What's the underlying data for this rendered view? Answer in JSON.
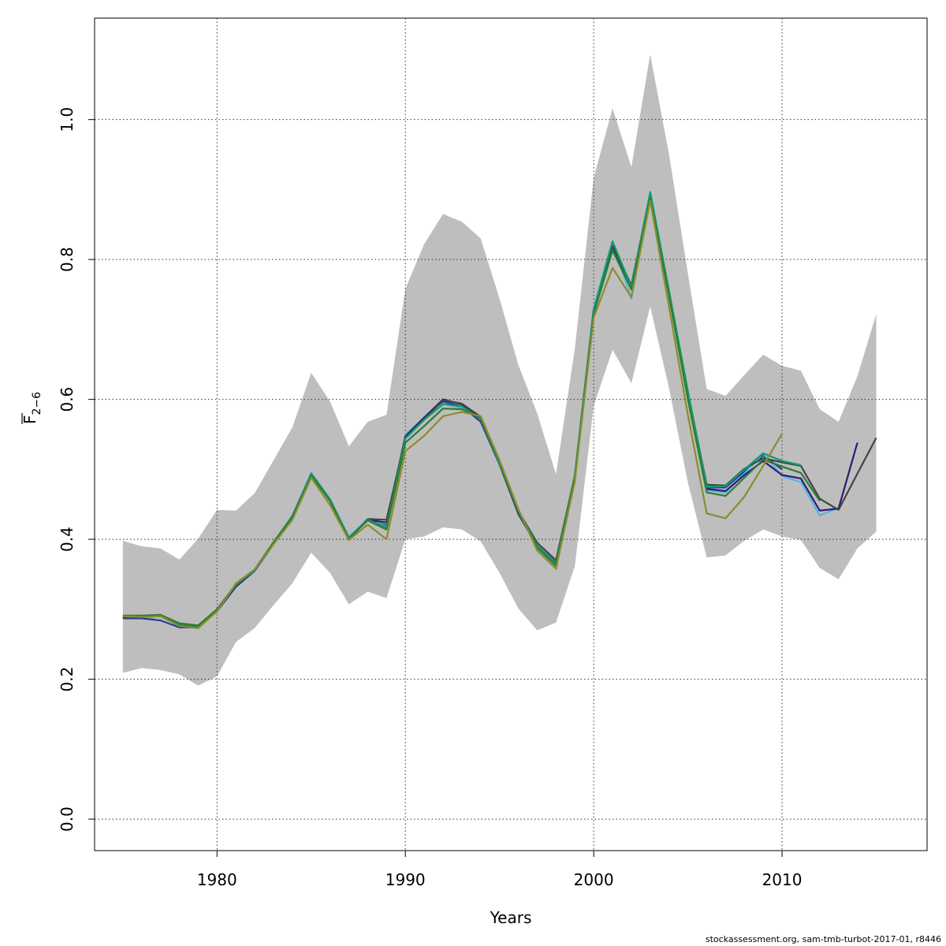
{
  "chart_data": {
    "type": "line",
    "xlabel": "Years",
    "ylabel_main": "F",
    "ylabel_sub": "2−6",
    "xlim": [
      1973.5,
      2017.7
    ],
    "ylim": [
      -0.045,
      1.145
    ],
    "x_ticks": [
      1980,
      1990,
      2000,
      2010
    ],
    "x_tick_labels": [
      "1980",
      "1990",
      "2000",
      "2010"
    ],
    "y_ticks": [
      0.0,
      0.2,
      0.4,
      0.6,
      0.8,
      1.0
    ],
    "y_tick_labels": [
      "0.0",
      "0.2",
      "0.4",
      "0.6",
      "0.8",
      "1.0"
    ],
    "grid": true,
    "band": {
      "color": "#bebebe",
      "x": [
        1975,
        1976,
        1977,
        1978,
        1979,
        1980,
        1981,
        1982,
        1983,
        1984,
        1985,
        1986,
        1987,
        1988,
        1989,
        1990,
        1991,
        1992,
        1993,
        1994,
        1995,
        1996,
        1997,
        1998,
        1999,
        2000,
        2001,
        2002,
        2003,
        2004,
        2005,
        2006,
        2007,
        2008,
        2009,
        2010,
        2011,
        2012,
        2013,
        2014,
        2015
      ],
      "upper": [
        0.398,
        0.39,
        0.387,
        0.371,
        0.401,
        0.442,
        0.441,
        0.466,
        0.513,
        0.56,
        0.638,
        0.597,
        0.533,
        0.568,
        0.578,
        0.758,
        0.822,
        0.865,
        0.854,
        0.83,
        0.744,
        0.649,
        0.58,
        0.493,
        0.673,
        0.917,
        1.016,
        0.932,
        1.093,
        0.95,
        0.78,
        0.615,
        0.605,
        0.635,
        0.664,
        0.648,
        0.641,
        0.586,
        0.568,
        0.633,
        0.722
      ],
      "lower": [
        0.209,
        0.216,
        0.213,
        0.207,
        0.191,
        0.204,
        0.253,
        0.273,
        0.306,
        0.337,
        0.381,
        0.352,
        0.307,
        0.325,
        0.316,
        0.4,
        0.404,
        0.417,
        0.414,
        0.397,
        0.352,
        0.301,
        0.27,
        0.281,
        0.362,
        0.591,
        0.671,
        0.623,
        0.733,
        0.616,
        0.481,
        0.374,
        0.377,
        0.398,
        0.414,
        0.404,
        0.399,
        0.359,
        0.343,
        0.387,
        0.411
      ]
    },
    "series": [
      {
        "color": "#1f3f9e",
        "x": [
          1975,
          1976,
          1977,
          1978,
          1979,
          1980,
          1981,
          1982,
          1983,
          1984,
          1985,
          1986,
          1987,
          1988,
          1989,
          1990,
          1991,
          1992,
          1993,
          1994,
          1995,
          1996,
          1997,
          1998,
          1999,
          2000,
          2001,
          2002,
          2003,
          2004,
          2005,
          2006,
          2007,
          2008,
          2009,
          2010
        ],
        "values": [
          0.287,
          0.287,
          0.284,
          0.274,
          0.274,
          0.297,
          0.332,
          0.355,
          0.393,
          0.432,
          0.492,
          0.456,
          0.401,
          0.427,
          0.42,
          0.545,
          0.571,
          0.597,
          0.59,
          0.568,
          0.507,
          0.436,
          0.39,
          0.364,
          0.49,
          0.726,
          0.821,
          0.763,
          0.894,
          0.749,
          0.606,
          0.474,
          0.474,
          0.497,
          0.52,
          0.5
        ]
      },
      {
        "color": "#56b4e9",
        "x": [
          1975,
          1976,
          1977,
          1978,
          1979,
          1980,
          1981,
          1982,
          1983,
          1984,
          1985,
          1986,
          1987,
          1988,
          1989,
          1990,
          1991,
          1992,
          1993,
          1994,
          1995,
          1996,
          1997,
          1998,
          1999,
          2000,
          2001,
          2002,
          2003,
          2004,
          2005,
          2006,
          2007,
          2008,
          2009,
          2010,
          2011,
          2012,
          2013
        ],
        "values": [
          0.29,
          0.29,
          0.29,
          0.278,
          0.276,
          0.299,
          0.336,
          0.357,
          0.396,
          0.434,
          0.495,
          0.458,
          0.404,
          0.429,
          0.418,
          0.55,
          0.574,
          0.594,
          0.588,
          0.573,
          0.51,
          0.442,
          0.391,
          0.366,
          0.491,
          0.731,
          0.826,
          0.744,
          0.897,
          0.755,
          0.611,
          0.47,
          0.467,
          0.494,
          0.523,
          0.49,
          0.482,
          0.434,
          0.445
        ]
      },
      {
        "color": "#2e1a78",
        "x": [
          1975,
          1976,
          1977,
          1978,
          1979,
          1980,
          1981,
          1982,
          1983,
          1984,
          1985,
          1986,
          1987,
          1988,
          1989,
          1990,
          1991,
          1992,
          1993,
          1994,
          1995,
          1996,
          1997,
          1998,
          1999,
          2000,
          2001,
          2002,
          2003,
          2004,
          2005,
          2006,
          2007,
          2008,
          2009,
          2010,
          2011,
          2012,
          2013,
          2014
        ],
        "values": [
          0.289,
          0.289,
          0.29,
          0.278,
          0.276,
          0.298,
          0.334,
          0.356,
          0.394,
          0.433,
          0.492,
          0.456,
          0.401,
          0.428,
          0.424,
          0.547,
          0.574,
          0.6,
          0.593,
          0.572,
          0.508,
          0.438,
          0.391,
          0.366,
          0.49,
          0.728,
          0.819,
          0.762,
          0.892,
          0.752,
          0.608,
          0.472,
          0.469,
          0.492,
          0.512,
          0.492,
          0.487,
          0.441,
          0.444,
          0.538
        ]
      },
      {
        "color": "#444444",
        "x": [
          1975,
          1976,
          1977,
          1978,
          1979,
          1980,
          1981,
          1982,
          1983,
          1984,
          1985,
          1986,
          1987,
          1988,
          1989,
          1990,
          1991,
          1992,
          1993,
          1994,
          1995,
          1996,
          1997,
          1998,
          1999,
          2000,
          2001,
          2002,
          2003,
          2004,
          2005,
          2006,
          2007,
          2008,
          2009,
          2010,
          2011,
          2012,
          2013,
          2014,
          2015
        ],
        "values": [
          0.288,
          0.289,
          0.29,
          0.278,
          0.276,
          0.298,
          0.334,
          0.356,
          0.394,
          0.433,
          0.492,
          0.455,
          0.399,
          0.429,
          0.428,
          0.545,
          0.572,
          0.599,
          0.594,
          0.575,
          0.51,
          0.44,
          0.395,
          0.37,
          0.491,
          0.727,
          0.818,
          0.761,
          0.891,
          0.753,
          0.609,
          0.478,
          0.477,
          0.501,
          0.516,
          0.51,
          0.505,
          0.458,
          0.442,
          0.494,
          0.545
        ]
      },
      {
        "color": "#0e9c6e",
        "x": [
          1975,
          1976,
          1977,
          1978,
          1979,
          1980,
          1981,
          1982,
          1983,
          1984,
          1985,
          1986,
          1987,
          1988,
          1989,
          1990,
          1991,
          1992,
          1993,
          1994,
          1995,
          1996,
          1997,
          1998,
          1999,
          2000,
          2001,
          2002,
          2003,
          2004,
          2005,
          2006,
          2007,
          2008,
          2009,
          2010,
          2011
        ],
        "values": [
          0.29,
          0.29,
          0.291,
          0.279,
          0.276,
          0.299,
          0.335,
          0.356,
          0.395,
          0.433,
          0.494,
          0.457,
          0.402,
          0.428,
          0.417,
          0.544,
          0.571,
          0.593,
          0.59,
          0.572,
          0.508,
          0.44,
          0.391,
          0.365,
          0.491,
          0.728,
          0.826,
          0.761,
          0.896,
          0.755,
          0.612,
          0.475,
          0.476,
          0.5,
          0.523,
          0.512,
          0.506
        ]
      },
      {
        "color": "#2e7d32",
        "x": [
          1975,
          1976,
          1977,
          1978,
          1979,
          1980,
          1981,
          1982,
          1983,
          1984,
          1985,
          1986,
          1987,
          1988,
          1989,
          1990,
          1991,
          1992,
          1993,
          1994,
          1995,
          1996,
          1997,
          1998,
          1999,
          2000,
          2001,
          2002,
          2003,
          2004,
          2005,
          2006,
          2007,
          2008,
          2009,
          2010,
          2011,
          2012
        ],
        "values": [
          0.291,
          0.291,
          0.292,
          0.28,
          0.277,
          0.3,
          0.336,
          0.357,
          0.396,
          0.432,
          0.491,
          0.455,
          0.401,
          0.427,
          0.414,
          0.538,
          0.562,
          0.587,
          0.586,
          0.573,
          0.51,
          0.439,
          0.388,
          0.362,
          0.488,
          0.722,
          0.813,
          0.757,
          0.887,
          0.748,
          0.6,
          0.467,
          0.462,
          0.488,
          0.514,
          0.504,
          0.495,
          0.455
        ]
      },
      {
        "color": "#8c8c2e",
        "x": [
          1975,
          1976,
          1977,
          1978,
          1979,
          1980,
          1981,
          1982,
          1983,
          1984,
          1985,
          1986,
          1987,
          1988,
          1989,
          1990,
          1991,
          1992,
          1993,
          1994,
          1995,
          1996,
          1997,
          1998,
          1999,
          2000,
          2001,
          2002,
          2003,
          2004,
          2005,
          2006,
          2007,
          2008,
          2009,
          2010
        ],
        "values": [
          0.29,
          0.289,
          0.29,
          0.276,
          0.273,
          0.297,
          0.337,
          0.357,
          0.393,
          0.428,
          0.488,
          0.449,
          0.399,
          0.421,
          0.4,
          0.526,
          0.548,
          0.576,
          0.582,
          0.576,
          0.513,
          0.443,
          0.384,
          0.358,
          0.483,
          0.717,
          0.788,
          0.746,
          0.884,
          0.732,
          0.578,
          0.437,
          0.43,
          0.461,
          0.505,
          0.551
        ]
      }
    ]
  },
  "credit": "stockassessment.org, sam-tmb-turbot-2017-01, r8446"
}
